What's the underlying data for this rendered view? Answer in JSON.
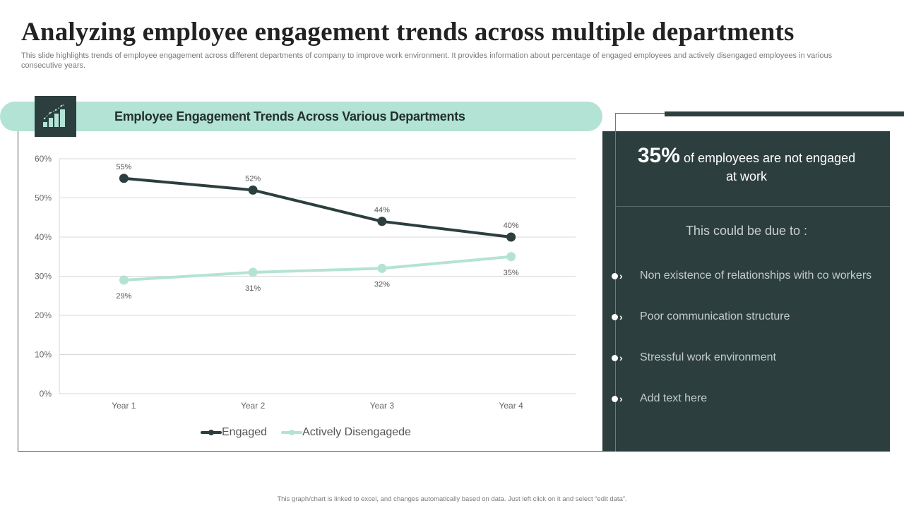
{
  "slide": {
    "title": "Analyzing employee engagement trends across multiple departments",
    "subtitle": "This slide highlights trends of employee engagement across different departments of company to improve work environment. It provides information about percentage of engaged employees and actively disengaged employees in various consecutive years.",
    "footer": "This graph/chart is linked to excel, and changes automatically based on data. Just left click on it and select “edit data”."
  },
  "chart_header": {
    "title": "Employee Engagement Trends Across Various Departments",
    "icon": "bar-chart-growth-icon"
  },
  "colors": {
    "dark": "#2c3e3d",
    "mint": "#b3e3d5",
    "engaged": "#2c3e3d",
    "disengaged": "#b3e3d5"
  },
  "chart_data": {
    "type": "line",
    "title": "Employee Engagement Trends Across Various Departments",
    "categories": [
      "Year 1",
      "Year 2",
      "Year 3",
      "Year 4"
    ],
    "series": [
      {
        "name": "Engaged",
        "values": [
          55,
          52,
          44,
          40
        ],
        "labels": [
          "55%",
          "52%",
          "44%",
          "40%"
        ],
        "color": "#2c3e3d"
      },
      {
        "name": "Actively Disengagede",
        "values": [
          29,
          31,
          32,
          35
        ],
        "labels": [
          "29%",
          "31%",
          "32%",
          "35%"
        ],
        "color": "#b3e3d5"
      }
    ],
    "yticks": [
      "0%",
      "10%",
      "20%",
      "30%",
      "40%",
      "50%",
      "60%"
    ],
    "ylim": [
      0,
      60
    ],
    "xlabel": "",
    "ylabel": "",
    "grid": true,
    "legend": "bottom"
  },
  "panel": {
    "stat_value": "35%",
    "stat_text_line1": "of employees are not engaged",
    "stat_text_line2": "at work",
    "due_heading": "This could be due to :",
    "reasons": [
      "Non existence of relationships with co workers",
      "Poor communication structure",
      "Stressful work environment",
      "Add text here"
    ]
  }
}
